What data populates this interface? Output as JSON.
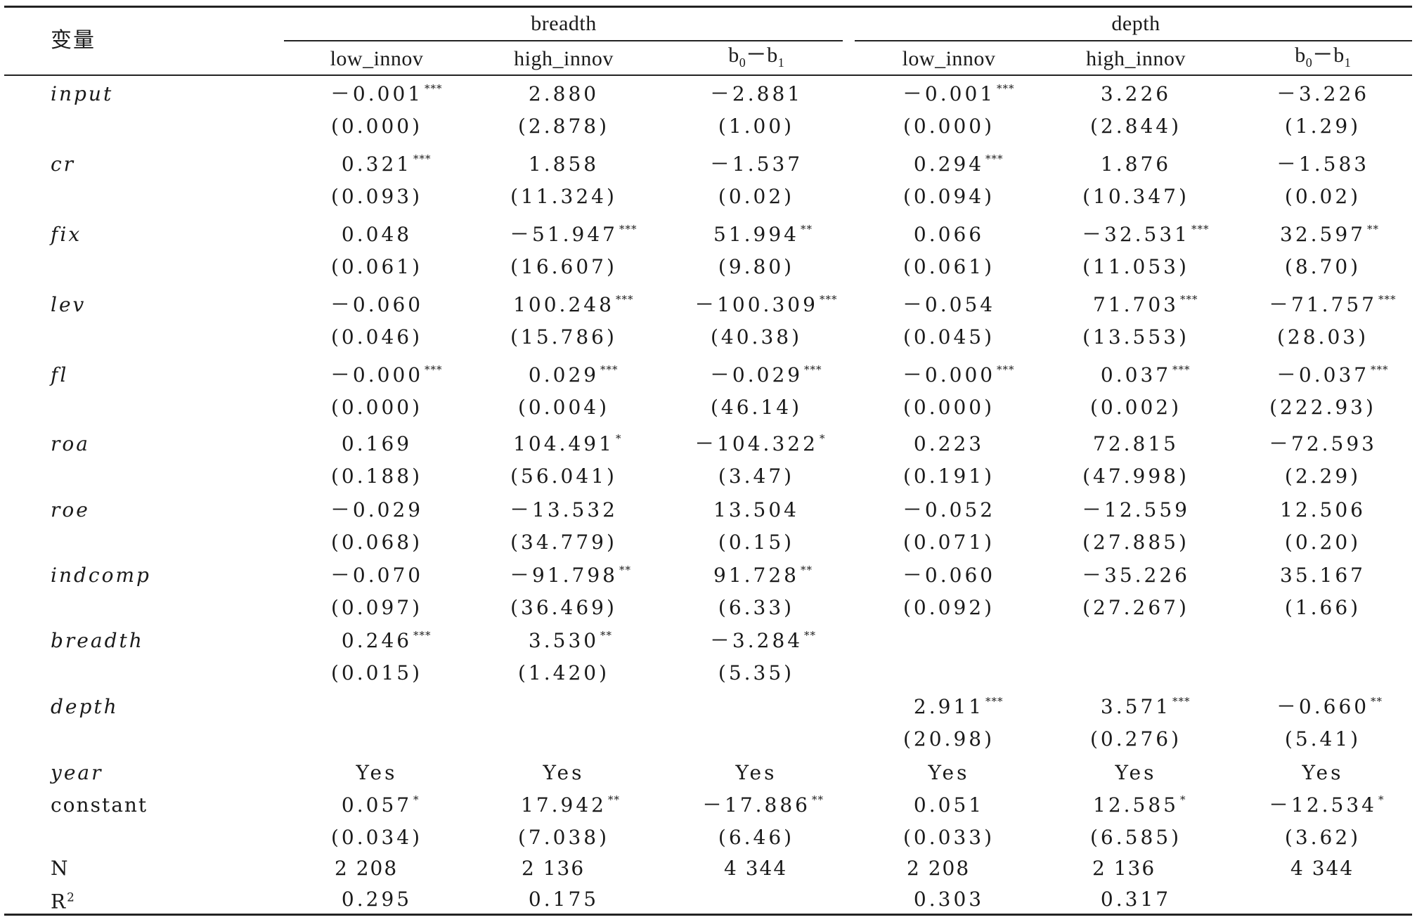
{
  "header": {
    "var_label": "变量",
    "groups": [
      "breadth",
      "depth"
    ],
    "columns": [
      "low_innov",
      "high_innov",
      "b",
      "low_innov",
      "high_innov",
      "b"
    ],
    "diff_sub0": "0",
    "diff_minus": "－",
    "diff_sub1": "1"
  },
  "rows": [
    {
      "label": "input",
      "italic": true,
      "coef": [
        "－0.001",
        "2.880",
        "－2.881",
        "－0.001",
        "3.226",
        "－3.226"
      ],
      "stars": [
        "***",
        "",
        "",
        "***",
        "",
        ""
      ],
      "se": [
        "(0.000)",
        "(2.878)",
        "(1.00)",
        "(0.000)",
        "(2.844)",
        "(1.29)"
      ]
    },
    {
      "label": "cr",
      "italic": true,
      "coef": [
        "0.321",
        "1.858",
        "－1.537",
        "0.294",
        "1.876",
        "－1.583"
      ],
      "stars": [
        "***",
        "",
        "",
        "***",
        "",
        ""
      ],
      "se": [
        "(0.093)",
        "(11.324)",
        "(0.02)",
        "(0.094)",
        "(10.347)",
        "(0.02)"
      ]
    },
    {
      "label": "fix",
      "italic": true,
      "coef": [
        "0.048",
        "－51.947",
        "51.994",
        "0.066",
        "－32.531",
        "32.597"
      ],
      "stars": [
        "",
        "***",
        "**",
        "",
        "***",
        "**"
      ],
      "se": [
        "(0.061)",
        "(16.607)",
        "(9.80)",
        "(0.061)",
        "(11.053)",
        "(8.70)"
      ]
    },
    {
      "label": "lev",
      "italic": true,
      "coef": [
        "－0.060",
        "100.248",
        "－100.309",
        "－0.054",
        "71.703",
        "－71.757"
      ],
      "stars": [
        "",
        "***",
        "***",
        "",
        "***",
        "***"
      ],
      "se": [
        "(0.046)",
        "(15.786)",
        "(40.38)",
        "(0.045)",
        "(13.553)",
        "(28.03)"
      ]
    },
    {
      "label": "fl",
      "italic": true,
      "coef": [
        "－0.000",
        "0.029",
        "－0.029",
        "－0.000",
        "0.037",
        "－0.037"
      ],
      "stars": [
        "***",
        "***",
        "***",
        "***",
        "***",
        "***"
      ],
      "se": [
        "(0.000)",
        "(0.004)",
        "(46.14)",
        "(0.000)",
        "(0.002)",
        "(222.93)"
      ]
    },
    {
      "label": "roa",
      "italic": true,
      "coef": [
        "0.169",
        "104.491",
        "－104.322",
        "0.223",
        "72.815",
        "－72.593"
      ],
      "stars": [
        "",
        "*",
        "*",
        "",
        "",
        ""
      ],
      "se": [
        "(0.188)",
        "(56.041)",
        "(3.47)",
        "(0.191)",
        "(47.998)",
        "(2.29)"
      ]
    },
    {
      "label": "roe",
      "italic": true,
      "coef": [
        "－0.029",
        "－13.532",
        "13.504",
        "－0.052",
        "－12.559",
        "12.506"
      ],
      "stars": [
        "",
        "",
        "",
        "",
        "",
        ""
      ],
      "se": [
        "(0.068)",
        "(34.779)",
        "(0.15)",
        "(0.071)",
        "(27.885)",
        "(0.20)"
      ]
    },
    {
      "label": "indcomp",
      "italic": true,
      "coef": [
        "－0.070",
        "－91.798",
        "91.728",
        "－0.060",
        "－35.226",
        "35.167"
      ],
      "stars": [
        "",
        "**",
        "**",
        "",
        "",
        ""
      ],
      "se": [
        "(0.097)",
        "(36.469)",
        "(6.33)",
        "(0.092)",
        "(27.267)",
        "(1.66)"
      ]
    },
    {
      "label": "breadth",
      "italic": true,
      "coef": [
        "0.246",
        "3.530",
        "－3.284",
        "",
        "",
        ""
      ],
      "stars": [
        "***",
        "**",
        "**",
        "",
        "",
        ""
      ],
      "se": [
        "(0.015)",
        "(1.420)",
        "(5.35)",
        "",
        "",
        ""
      ]
    },
    {
      "label": "depth",
      "italic": true,
      "coef": [
        "",
        "",
        "",
        "2.911",
        "3.571",
        "－0.660"
      ],
      "stars": [
        "",
        "",
        "",
        "***",
        "***",
        "**"
      ],
      "se": [
        "",
        "",
        "",
        "(20.98)",
        "(0.276)",
        "(5.41)"
      ]
    },
    {
      "label": "year",
      "italic": true,
      "coef": [
        "Yes",
        "Yes",
        "Yes",
        "Yes",
        "Yes",
        "Yes"
      ],
      "stars": [
        "",
        "",
        "",
        "",
        "",
        ""
      ],
      "se": [
        "",
        "",
        "",
        "",
        "",
        ""
      ]
    },
    {
      "label": "constant",
      "italic": false,
      "coef": [
        "0.057",
        "17.942",
        "－17.886",
        "0.051",
        "12.585",
        "－12.534"
      ],
      "stars": [
        "*",
        "**",
        "**",
        "",
        "*",
        "*"
      ],
      "se": [
        "(0.034)",
        "(7.038)",
        "(6.46)",
        "(0.033)",
        "(6.585)",
        "(3.62)"
      ]
    }
  ],
  "n_row": {
    "label": "N",
    "values": [
      "2 208",
      "2 136",
      "4 344",
      "2 208",
      "2 136",
      "4 344"
    ]
  },
  "r2_row": {
    "label": "R",
    "sup": "2",
    "values": [
      "0.295",
      "0.175",
      "",
      "0.303",
      "0.317",
      ""
    ]
  }
}
